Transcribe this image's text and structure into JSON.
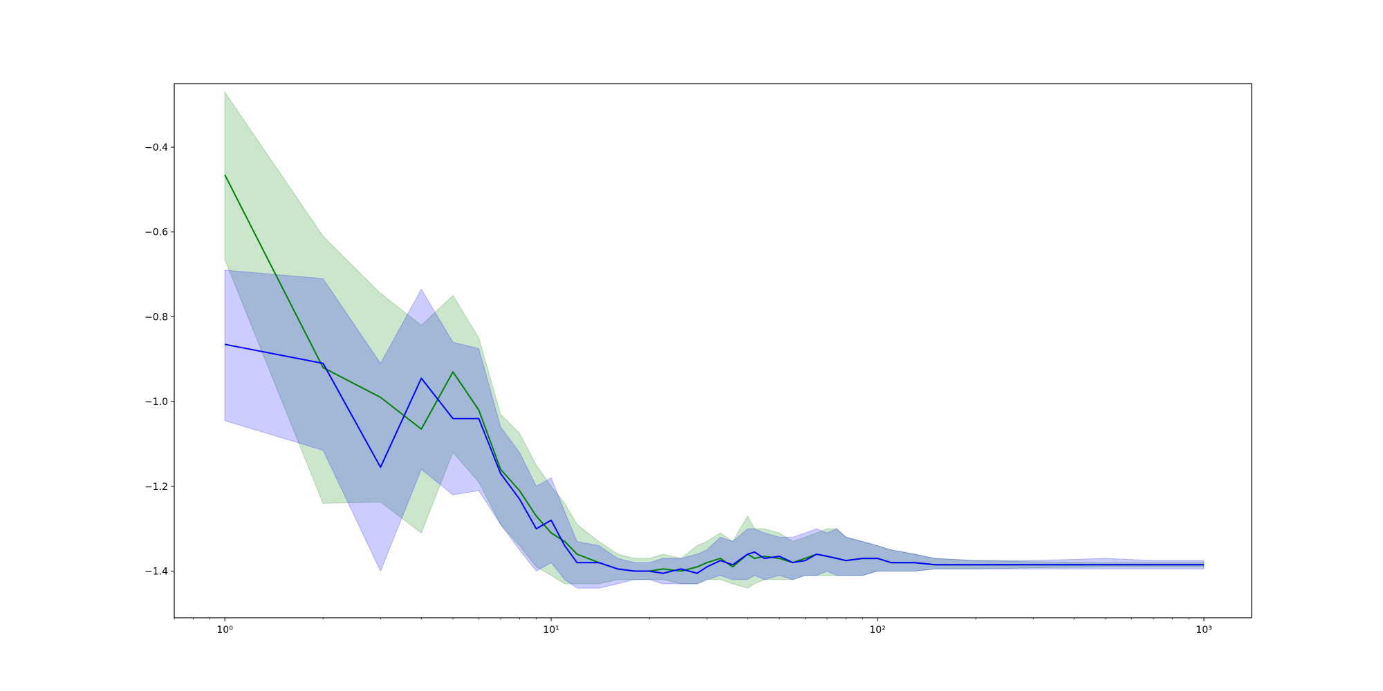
{
  "chart_data": {
    "type": "line",
    "title": "",
    "xlabel": "",
    "ylabel": "",
    "x_scale": "log",
    "xlim": [
      0.7,
      1400
    ],
    "ylim": [
      -1.51,
      -0.25
    ],
    "grid": false,
    "legend": "none",
    "x_major_ticks": [
      {
        "value": 1,
        "label": "10⁰"
      },
      {
        "value": 10,
        "label": "10¹"
      },
      {
        "value": 100,
        "label": "10²"
      },
      {
        "value": 1000,
        "label": "10³"
      }
    ],
    "y_ticks": [
      {
        "value": -0.4,
        "label": "−0.4"
      },
      {
        "value": -0.6,
        "label": "−0.6"
      },
      {
        "value": -0.8,
        "label": "−0.8"
      },
      {
        "value": -1.0,
        "label": "−1.0"
      },
      {
        "value": -1.2,
        "label": "−1.2"
      },
      {
        "value": -1.4,
        "label": "−1.4"
      }
    ],
    "series": [
      {
        "color": "#008000",
        "band_color": "#008000",
        "x": [
          1,
          2,
          3,
          4,
          5,
          6,
          7,
          8,
          9,
          10,
          11,
          12,
          14,
          16,
          18,
          20,
          22,
          25,
          28,
          30,
          33,
          36,
          40,
          42,
          45,
          50,
          55,
          60,
          65,
          70,
          75,
          80,
          90,
          100,
          110,
          130,
          150,
          200,
          300,
          500,
          700,
          1000
        ],
        "mean": [
          -0.465,
          -0.92,
          -0.99,
          -1.065,
          -0.93,
          -1.02,
          -1.16,
          -1.21,
          -1.27,
          -1.31,
          -1.33,
          -1.36,
          -1.38,
          -1.395,
          -1.4,
          -1.4,
          -1.395,
          -1.4,
          -1.39,
          -1.38,
          -1.37,
          -1.39,
          -1.36,
          -1.37,
          -1.365,
          -1.37,
          -1.38,
          -1.37,
          -1.36,
          -1.365,
          -1.37,
          -1.375,
          -1.37,
          -1.37,
          -1.38,
          -1.38,
          -1.385,
          -1.385,
          -1.385,
          -1.385,
          -1.385,
          -1.385
        ],
        "upper": [
          -0.27,
          -0.61,
          -0.745,
          -0.82,
          -0.75,
          -0.85,
          -1.03,
          -1.075,
          -1.15,
          -1.2,
          -1.24,
          -1.29,
          -1.33,
          -1.36,
          -1.37,
          -1.37,
          -1.36,
          -1.37,
          -1.34,
          -1.33,
          -1.31,
          -1.33,
          -1.27,
          -1.3,
          -1.3,
          -1.31,
          -1.33,
          -1.32,
          -1.31,
          -1.3,
          -1.3,
          -1.32,
          -1.33,
          -1.34,
          -1.35,
          -1.36,
          -1.37,
          -1.375,
          -1.378,
          -1.38,
          -1.38,
          -1.38
        ],
        "lower": [
          -0.665,
          -1.24,
          -1.237,
          -1.31,
          -1.12,
          -1.19,
          -1.29,
          -1.34,
          -1.39,
          -1.41,
          -1.43,
          -1.43,
          -1.43,
          -1.42,
          -1.42,
          -1.42,
          -1.42,
          -1.43,
          -1.43,
          -1.42,
          -1.42,
          -1.43,
          -1.44,
          -1.43,
          -1.42,
          -1.42,
          -1.42,
          -1.41,
          -1.41,
          -1.41,
          -1.41,
          -1.41,
          -1.41,
          -1.4,
          -1.4,
          -1.4,
          -1.395,
          -1.395,
          -1.392,
          -1.39,
          -1.39,
          -1.39
        ]
      },
      {
        "color": "#0000ff",
        "band_color": "#0000ff",
        "x": [
          1,
          2,
          3,
          4,
          5,
          6,
          7,
          8,
          9,
          10,
          11,
          12,
          14,
          16,
          18,
          20,
          22,
          25,
          28,
          30,
          33,
          36,
          40,
          42,
          45,
          50,
          55,
          60,
          65,
          70,
          75,
          80,
          90,
          100,
          110,
          130,
          150,
          200,
          300,
          500,
          700,
          1000
        ],
        "mean": [
          -0.865,
          -0.91,
          -1.155,
          -0.945,
          -1.04,
          -1.04,
          -1.17,
          -1.23,
          -1.3,
          -1.28,
          -1.34,
          -1.38,
          -1.38,
          -1.395,
          -1.4,
          -1.4,
          -1.405,
          -1.395,
          -1.405,
          -1.39,
          -1.375,
          -1.385,
          -1.36,
          -1.355,
          -1.37,
          -1.365,
          -1.38,
          -1.375,
          -1.36,
          -1.365,
          -1.37,
          -1.375,
          -1.37,
          -1.37,
          -1.38,
          -1.38,
          -1.385,
          -1.385,
          -1.385,
          -1.385,
          -1.385,
          -1.385
        ],
        "upper": [
          -0.69,
          -0.71,
          -0.91,
          -0.735,
          -0.86,
          -0.875,
          -1.06,
          -1.12,
          -1.2,
          -1.18,
          -1.26,
          -1.33,
          -1.34,
          -1.37,
          -1.38,
          -1.38,
          -1.37,
          -1.37,
          -1.36,
          -1.35,
          -1.32,
          -1.33,
          -1.3,
          -1.3,
          -1.31,
          -1.32,
          -1.32,
          -1.31,
          -1.3,
          -1.31,
          -1.3,
          -1.32,
          -1.33,
          -1.34,
          -1.35,
          -1.36,
          -1.37,
          -1.375,
          -1.375,
          -1.37,
          -1.375,
          -1.375
        ],
        "lower": [
          -1.045,
          -1.115,
          -1.4,
          -1.16,
          -1.22,
          -1.21,
          -1.29,
          -1.35,
          -1.4,
          -1.38,
          -1.42,
          -1.44,
          -1.44,
          -1.43,
          -1.42,
          -1.42,
          -1.43,
          -1.43,
          -1.43,
          -1.42,
          -1.41,
          -1.42,
          -1.42,
          -1.41,
          -1.42,
          -1.41,
          -1.42,
          -1.41,
          -1.41,
          -1.4,
          -1.41,
          -1.41,
          -1.41,
          -1.4,
          -1.4,
          -1.4,
          -1.395,
          -1.395,
          -1.395,
          -1.395,
          -1.395,
          -1.395
        ]
      }
    ]
  }
}
